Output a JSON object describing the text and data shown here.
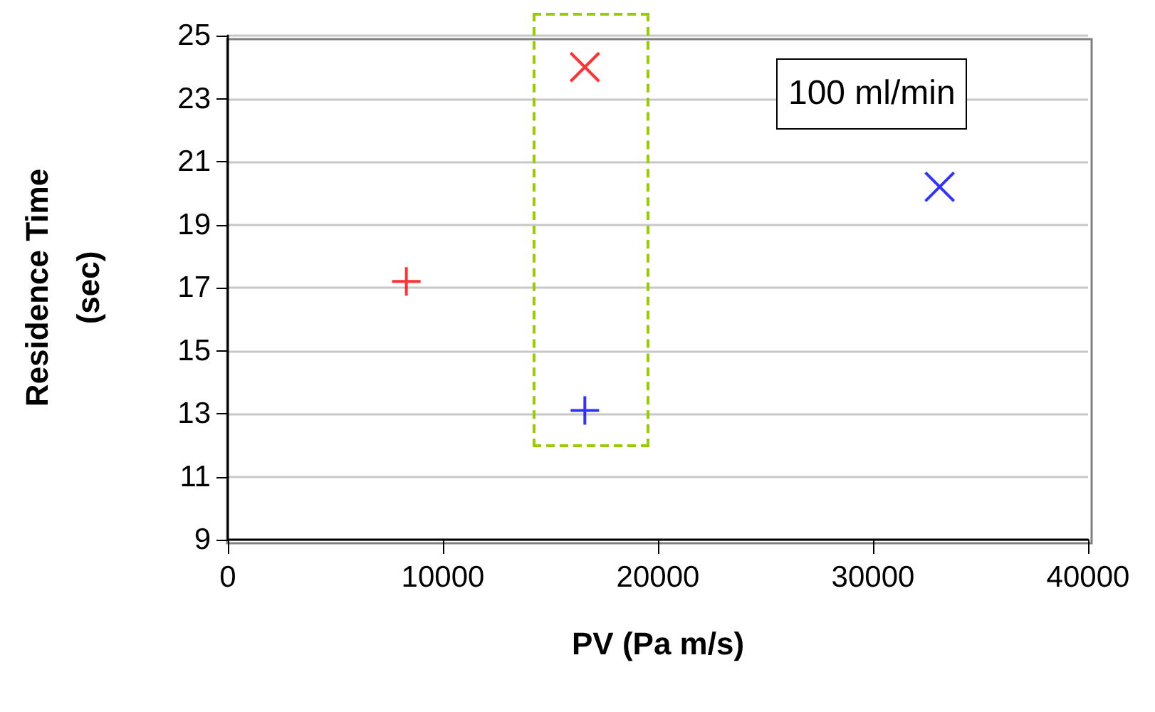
{
  "chart_data": {
    "type": "scatter",
    "xlabel": "PV (Pa m/s)",
    "ylabel": "Residence Time\n(sec)",
    "xlim": [
      0,
      40000
    ],
    "xticks": [
      0,
      10000,
      20000,
      30000,
      40000
    ],
    "ylim": [
      9,
      25
    ],
    "yticks": [
      9,
      11,
      13,
      15,
      17,
      19,
      21,
      23,
      25
    ],
    "grid": "y",
    "annotations": [
      "100 ml/min"
    ],
    "series": [
      {
        "color": "#ff0000",
        "marker": "plus",
        "x": [
          8300
        ],
        "values": [
          17.2
        ]
      },
      {
        "color": "#ff0000",
        "marker": "cross",
        "x": [
          16600
        ],
        "values": [
          24
        ]
      },
      {
        "color": "#0000ff",
        "marker": "plus",
        "x": [
          16600
        ],
        "values": [
          13.1
        ]
      },
      {
        "color": "#0000ff",
        "marker": "cross",
        "x": [
          33100
        ],
        "values": [
          20.2
        ]
      }
    ]
  }
}
